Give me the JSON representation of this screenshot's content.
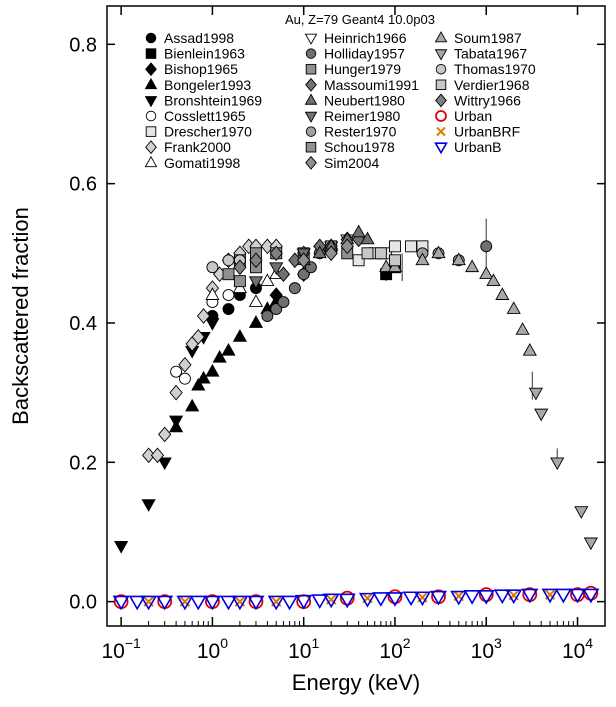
{
  "chart_data": {
    "type": "scatter",
    "title": "Au, Z=79 Geant4 10.0p03",
    "xlabel": "Energy (keV)",
    "ylabel": "Backscattered fraction",
    "x_scale": "log",
    "xlim": [
      0.07,
      20000
    ],
    "ylim": [
      -0.035,
      0.855
    ],
    "x_ticks": [
      {
        "value": 0.1,
        "base": "10",
        "exp": "−1"
      },
      {
        "value": 1,
        "base": "10",
        "exp": "0"
      },
      {
        "value": 10,
        "base": "10",
        "exp": "1"
      },
      {
        "value": 100,
        "base": "10",
        "exp": "2"
      },
      {
        "value": 1000,
        "base": "10",
        "exp": "3"
      },
      {
        "value": 10000,
        "base": "10",
        "exp": "4"
      }
    ],
    "y_ticks": [
      {
        "value": 0.0,
        "label": "0.0"
      },
      {
        "value": 0.2,
        "label": "0.2"
      },
      {
        "value": 0.4,
        "label": "0.4"
      },
      {
        "value": 0.6,
        "label": "0.6"
      },
      {
        "value": 0.8,
        "label": "0.8"
      }
    ],
    "grid": false,
    "legend_position": "top",
    "series": [
      {
        "name": "Assad1998",
        "marker": "circle",
        "color": "#000000",
        "points": [
          [
            1.0,
            0.41
          ],
          [
            1.5,
            0.42
          ],
          [
            2.0,
            0.44
          ],
          [
            3.0,
            0.45
          ]
        ]
      },
      {
        "name": "Bienlein1963",
        "marker": "square",
        "color": "#000000",
        "points": [
          [
            100,
            0.48
          ],
          [
            80,
            0.47
          ]
        ]
      },
      {
        "name": "Bishop1965",
        "marker": "diamond",
        "color": "#000000",
        "points": [
          [
            5,
            0.44
          ],
          [
            10,
            0.47
          ]
        ]
      },
      {
        "name": "Bongeler1993",
        "marker": "triangle-up",
        "color": "#000000",
        "points": [
          [
            0.4,
            0.25
          ],
          [
            0.6,
            0.28
          ],
          [
            0.7,
            0.31
          ],
          [
            0.8,
            0.32
          ],
          [
            1.0,
            0.33
          ],
          [
            1.2,
            0.35
          ],
          [
            1.5,
            0.36
          ],
          [
            2.0,
            0.38
          ],
          [
            3.0,
            0.4
          ],
          [
            4.0,
            0.42
          ],
          [
            5.0,
            0.43
          ]
        ]
      },
      {
        "name": "Bronshtein1969",
        "marker": "triangle-down",
        "color": "#000000",
        "points": [
          [
            0.1,
            0.08
          ],
          [
            0.2,
            0.14
          ],
          [
            0.3,
            0.2
          ],
          [
            0.4,
            0.26
          ],
          [
            0.6,
            0.36
          ],
          [
            0.8,
            0.38
          ],
          [
            1.0,
            0.4
          ]
        ]
      },
      {
        "name": "Cosslett1965",
        "marker": "circle",
        "color": "#ffffff",
        "points": [
          [
            0.4,
            0.33
          ],
          [
            0.5,
            0.32
          ],
          [
            1.0,
            0.43
          ],
          [
            1.5,
            0.44
          ]
        ]
      },
      {
        "name": "Drescher1970",
        "marker": "square",
        "color": "#e6e6e6",
        "points": [
          [
            40,
            0.49
          ],
          [
            60,
            0.5
          ],
          [
            80,
            0.5
          ],
          [
            100,
            0.51
          ],
          [
            150,
            0.51
          ],
          [
            200,
            0.51
          ]
        ]
      },
      {
        "name": "Frank2000",
        "marker": "diamond",
        "color": "#d0d0d0",
        "points": [
          [
            0.2,
            0.21
          ],
          [
            0.25,
            0.21
          ],
          [
            0.3,
            0.24
          ],
          [
            0.4,
            0.3
          ],
          [
            0.5,
            0.34
          ],
          [
            0.6,
            0.37
          ],
          [
            0.7,
            0.38
          ],
          [
            0.8,
            0.41
          ],
          [
            1.0,
            0.45
          ],
          [
            1.2,
            0.47
          ],
          [
            1.5,
            0.49
          ],
          [
            2.0,
            0.5
          ],
          [
            2.5,
            0.51
          ],
          [
            3.0,
            0.51
          ],
          [
            4.0,
            0.51
          ],
          [
            5.0,
            0.51
          ]
        ]
      },
      {
        "name": "Gomati1998",
        "marker": "triangle-up",
        "color": "#ffffff",
        "points": [
          [
            1.0,
            0.44
          ],
          [
            2.0,
            0.45
          ],
          [
            3.0,
            0.43
          ],
          [
            4.0,
            0.46
          ],
          [
            5.0,
            0.47
          ]
        ]
      },
      {
        "name": "Heinrich1966",
        "marker": "triangle-down",
        "color": "#ffffff",
        "points": [
          [
            10,
            0.5
          ],
          [
            20,
            0.51
          ],
          [
            30,
            0.52
          ]
        ]
      },
      {
        "name": "Holliday1957",
        "marker": "circle",
        "color": "#707070",
        "points": [
          [
            4,
            0.41
          ],
          [
            5,
            0.42
          ],
          [
            6,
            0.43
          ],
          [
            8,
            0.45
          ],
          [
            10,
            0.47
          ],
          [
            12,
            0.48
          ],
          [
            15,
            0.5
          ],
          [
            20,
            0.51
          ],
          [
            1000,
            0.51
          ]
        ]
      },
      {
        "name": "Hunger1979",
        "marker": "square",
        "color": "#909090",
        "points": [
          [
            2,
            0.46
          ],
          [
            3,
            0.48
          ],
          [
            5,
            0.5
          ],
          [
            10,
            0.5
          ],
          [
            20,
            0.51
          ],
          [
            30,
            0.5
          ]
        ]
      },
      {
        "name": "Massoumi1991",
        "marker": "diamond",
        "color": "#707070",
        "points": [
          [
            6,
            0.47
          ],
          [
            8,
            0.49
          ],
          [
            10,
            0.5
          ],
          [
            15,
            0.51
          ],
          [
            20,
            0.51
          ],
          [
            30,
            0.52
          ],
          [
            40,
            0.52
          ]
        ]
      },
      {
        "name": "Neubert1980",
        "marker": "triangle-up",
        "color": "#707070",
        "points": [
          [
            10,
            0.49
          ],
          [
            15,
            0.5
          ],
          [
            20,
            0.51
          ],
          [
            30,
            0.52
          ],
          [
            40,
            0.53
          ],
          [
            50,
            0.52
          ]
        ]
      },
      {
        "name": "Reimer1980",
        "marker": "triangle-down",
        "color": "#707070",
        "points": [
          [
            3,
            0.46
          ],
          [
            5,
            0.48
          ],
          [
            10,
            0.5
          ],
          [
            20,
            0.5
          ]
        ]
      },
      {
        "name": "Rester1970",
        "marker": "circle",
        "color": "#a0a0a0",
        "points": [
          [
            200,
            0.5
          ],
          [
            300,
            0.5
          ],
          [
            500,
            0.49
          ]
        ]
      },
      {
        "name": "Schou1978",
        "marker": "square",
        "color": "#909090",
        "points": [
          [
            1.5,
            0.47
          ],
          [
            2.0,
            0.49
          ],
          [
            3.0,
            0.5
          ]
        ]
      },
      {
        "name": "Sim2004",
        "marker": "diamond",
        "color": "#909090",
        "points": [
          [
            10,
            0.49
          ],
          [
            20,
            0.5
          ],
          [
            30,
            0.51
          ]
        ]
      },
      {
        "name": "Soum1987",
        "marker": "triangle-up",
        "color": "#a8a8a8",
        "points": [
          [
            80,
            0.48
          ],
          [
            100,
            0.48
          ],
          [
            200,
            0.49
          ],
          [
            300,
            0.5
          ],
          [
            500,
            0.49
          ],
          [
            700,
            0.48
          ],
          [
            1000,
            0.47
          ],
          [
            1200,
            0.46
          ],
          [
            1500,
            0.44
          ],
          [
            2000,
            0.42
          ],
          [
            2500,
            0.39
          ],
          [
            3000,
            0.36
          ]
        ]
      },
      {
        "name": "Tabata1967",
        "marker": "triangle-down",
        "color": "#a8a8a8",
        "points": [
          [
            3500,
            0.3
          ],
          [
            4000,
            0.27
          ],
          [
            6000,
            0.2
          ],
          [
            11000,
            0.13
          ],
          [
            14000,
            0.085
          ]
        ]
      },
      {
        "name": "Thomas1970",
        "marker": "circle",
        "color": "#c8c8c8",
        "points": [
          [
            1.0,
            0.48
          ],
          [
            1.5,
            0.49
          ],
          [
            2.0,
            0.49
          ]
        ]
      },
      {
        "name": "Verdier1968",
        "marker": "square",
        "color": "#c8c8c8",
        "points": [
          [
            50,
            0.5
          ],
          [
            70,
            0.5
          ],
          [
            100,
            0.49
          ]
        ]
      },
      {
        "name": "Wittry1966",
        "marker": "diamond",
        "color": "#808080",
        "points": [
          [
            2,
            0.48
          ],
          [
            3,
            0.49
          ],
          [
            5,
            0.5
          ]
        ]
      },
      {
        "name": "Urban",
        "marker": "circle-open",
        "color": "#e00000",
        "points": [
          [
            0.1,
            0.0
          ],
          [
            0.3,
            0.0
          ],
          [
            1,
            0.0
          ],
          [
            3,
            0.0
          ],
          [
            10,
            0.0
          ],
          [
            30,
            0.005
          ],
          [
            100,
            0.007
          ],
          [
            300,
            0.007
          ],
          [
            1000,
            0.01
          ],
          [
            3000,
            0.01
          ],
          [
            10000,
            0.01
          ],
          [
            14000,
            0.012
          ]
        ]
      },
      {
        "name": "UrbanBRF",
        "marker": "x",
        "color": "#e07800",
        "points": [
          [
            0.2,
            0.0
          ],
          [
            0.5,
            0.0
          ],
          [
            2,
            0.0
          ],
          [
            5,
            0.0
          ],
          [
            20,
            0.003
          ],
          [
            50,
            0.005
          ],
          [
            200,
            0.006
          ],
          [
            500,
            0.008
          ],
          [
            2000,
            0.009
          ],
          [
            5000,
            0.01
          ]
        ]
      },
      {
        "name": "UrbanB",
        "marker": "triangle-down-open",
        "color": "#0000e0",
        "points": [
          [
            0.1,
            0.0
          ],
          [
            0.15,
            0.0
          ],
          [
            0.2,
            0.0
          ],
          [
            0.3,
            0.0
          ],
          [
            0.5,
            0.0
          ],
          [
            0.7,
            0.0
          ],
          [
            1,
            0.0
          ],
          [
            1.5,
            0.0
          ],
          [
            2,
            0.0
          ],
          [
            3,
            0.0
          ],
          [
            5,
            0.0
          ],
          [
            7,
            0.0
          ],
          [
            10,
            0.001
          ],
          [
            15,
            0.002
          ],
          [
            20,
            0.003
          ],
          [
            30,
            0.003
          ],
          [
            50,
            0.004
          ],
          [
            70,
            0.005
          ],
          [
            100,
            0.005
          ],
          [
            150,
            0.006
          ],
          [
            200,
            0.006
          ],
          [
            300,
            0.007
          ],
          [
            500,
            0.007
          ],
          [
            700,
            0.008
          ],
          [
            1000,
            0.008
          ],
          [
            1500,
            0.009
          ],
          [
            2000,
            0.009
          ],
          [
            3000,
            0.01
          ],
          [
            5000,
            0.01
          ],
          [
            7000,
            0.01
          ],
          [
            10000,
            0.01
          ],
          [
            14000,
            0.01
          ]
        ]
      }
    ],
    "error_bars": [
      {
        "x": 1000,
        "y_low": 0.47,
        "y_high": 0.55
      },
      {
        "x": 80,
        "y_low": 0.46,
        "y_high": 0.49
      },
      {
        "x": 120,
        "y_low": 0.46,
        "y_high": 0.5
      },
      {
        "x": 3200,
        "y_low": 0.29,
        "y_high": 0.33
      },
      {
        "x": 6000,
        "y_low": 0.19,
        "y_high": 0.22
      }
    ]
  }
}
